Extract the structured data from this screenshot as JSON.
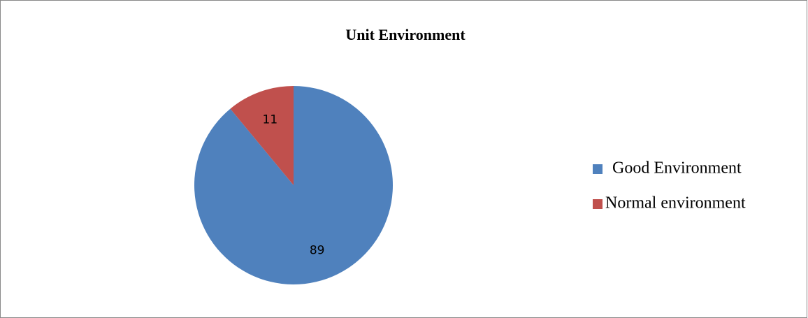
{
  "chart_data": {
    "type": "pie",
    "title": "Unit Environment",
    "categories": [
      "Good Environment",
      "Normal environment"
    ],
    "values": [
      89,
      11
    ],
    "colors": [
      "#4f81bd",
      "#c0504d"
    ]
  }
}
